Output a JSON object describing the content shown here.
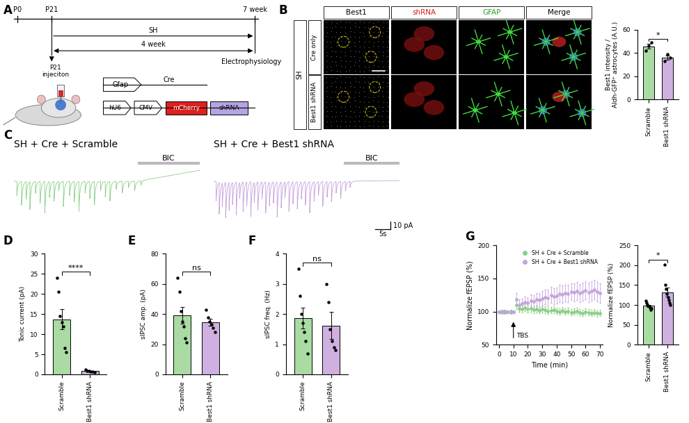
{
  "panel_labels": [
    "A",
    "B",
    "C",
    "D",
    "E",
    "F",
    "G"
  ],
  "schematic": {
    "timeline": [
      "P0",
      "P21",
      "7 week"
    ],
    "treatment": "SH",
    "duration": "4 week",
    "injection": "P21\ninjeciton",
    "endpoint": "Electrophysiology",
    "constructs": [
      [
        "Gfap",
        "Cre"
      ],
      [
        "hU6",
        "CMV",
        "mCherry",
        "shRNA"
      ]
    ]
  },
  "microscopy": {
    "group": "SH",
    "rows": [
      "Cre only",
      "Best1 shRNA"
    ],
    "columns": [
      "Best1",
      "shRNA",
      "GFAP",
      "Merge"
    ]
  },
  "traces": [
    {
      "title": "SH + Cre + Scramble",
      "color": "#8ccf86",
      "duration_s": 60,
      "drug": "BIC",
      "drug_start_s": 40,
      "baseline_shift_pA": 14,
      "events": {
        "t": [
          1,
          2.5,
          4,
          5.2,
          7,
          8.5,
          10,
          11.5,
          13,
          14.5,
          16,
          18,
          19.5,
          21,
          23,
          24.5,
          26,
          28,
          29.5,
          31,
          33,
          35,
          37,
          39,
          41
        ],
        "amp_pA": [
          18,
          30,
          22,
          35,
          15,
          28,
          40,
          20,
          25,
          12,
          32,
          18,
          26,
          38,
          15,
          22,
          30,
          12,
          20,
          25,
          10,
          15,
          8,
          12,
          6
        ]
      }
    },
    {
      "title": "SH + Cre + Best1 shRNA",
      "color": "#c5a3dc",
      "duration_s": 60,
      "drug": "BIC",
      "drug_start_s": 42,
      "baseline_shift_pA": 1,
      "events": {
        "t": [
          0.8,
          1.8,
          2.8,
          3.9,
          5,
          6.1,
          7.3,
          8.4,
          9.5,
          10.7,
          12,
          13.1,
          14.3,
          15.6,
          16.8,
          18,
          19.3,
          20.5,
          21.8,
          23,
          24.3,
          25.6,
          27,
          28.3,
          29.6,
          31,
          32.4,
          33.8,
          35.2,
          36.6,
          38,
          39.5,
          41,
          42.5,
          44
        ],
        "amp_pA": [
          25,
          40,
          30,
          45,
          35,
          28,
          42,
          20,
          38,
          30,
          44,
          25,
          36,
          22,
          40,
          30,
          27,
          45,
          33,
          20,
          38,
          28,
          35,
          22,
          30,
          40,
          25,
          18,
          32,
          20,
          26,
          15,
          22,
          12,
          8
        ]
      }
    }
  ],
  "scale_bars": [
    {
      "value": 10,
      "label": "10 pA"
    },
    {
      "value": 5,
      "label": "5s"
    }
  ],
  "chart_data": [
    {
      "type": "bar",
      "categories": [
        "Scramble",
        "Best1 shRNA"
      ],
      "values": [
        45.7,
        36
      ],
      "errors": [
        2.1,
        1.7
      ],
      "points": [
        [
          42,
          46,
          49
        ],
        [
          33,
          39,
          36
        ]
      ],
      "colors": [
        "#a9dba3",
        "#cfb0e0"
      ],
      "y_label": "Best1 intensity /\nAldh-GFP⁺ astrocytes (A.U.)",
      "ylim": [
        0,
        60
      ],
      "yticks": [
        0,
        20,
        40,
        60
      ],
      "significance": "*"
    },
    {
      "type": "bar",
      "categories": [
        "Scramble",
        "Best1 shRNA"
      ],
      "values": [
        13.7,
        0.8
      ],
      "errors": [
        2.5,
        0.1
      ],
      "points": [
        [
          24,
          20.5,
          14.5,
          13,
          12,
          6.5,
          5.5
        ],
        [
          1.2,
          0.9,
          0.8,
          0.7,
          0.6,
          0.5
        ]
      ],
      "colors": [
        "#a9dba3",
        "#cfb0e0"
      ],
      "y_label": "Tonic current (pA)",
      "ylim": [
        0,
        30
      ],
      "yticks": [
        0,
        5,
        10,
        15,
        20,
        25,
        30
      ],
      "significance": "****"
    },
    {
      "type": "bar",
      "categories": [
        "Scramble",
        "Best1 shRNA"
      ],
      "values": [
        39,
        34.7
      ],
      "errors": [
        5.5,
        2.3
      ],
      "points": [
        [
          64,
          55,
          42,
          35,
          32,
          24,
          21
        ],
        [
          43,
          38,
          35,
          33,
          31,
          28
        ]
      ],
      "colors": [
        "#a9dba3",
        "#cfb0e0"
      ],
      "y_label": "sIPSC amp. (pA)",
      "ylim": [
        0,
        80
      ],
      "yticks": [
        0,
        20,
        40,
        60,
        80
      ],
      "significance": "ns"
    },
    {
      "type": "bar",
      "categories": [
        "Scramble",
        "Best1 shRNA"
      ],
      "values": [
        1.86,
        1.62
      ],
      "errors": [
        0.35,
        0.45
      ],
      "points": [
        [
          3.5,
          2.6,
          2.0,
          1.7,
          1.4,
          1.1,
          0.7
        ],
        [
          3.0,
          2.4,
          1.5,
          1.1,
          0.9,
          0.8
        ]
      ],
      "colors": [
        "#a9dba3",
        "#cfb0e0"
      ],
      "y_label": "sIPSC freq. (Hz)",
      "ylim": [
        0,
        4
      ],
      "yticks": [
        0,
        1,
        2,
        3,
        4
      ],
      "significance": "ns"
    },
    {
      "type": "line",
      "x": [
        0,
        2,
        4,
        6,
        8,
        10,
        12,
        14,
        16,
        18,
        20,
        22,
        24,
        26,
        28,
        30,
        32,
        34,
        36,
        38,
        40,
        42,
        44,
        46,
        48,
        50,
        52,
        54,
        56,
        58,
        60,
        62,
        64,
        66,
        68,
        70
      ],
      "x_label": "Time (min)",
      "y_label": "Normalize fEPSP (%)",
      "xlim": [
        -2,
        72
      ],
      "xticks": [
        0,
        10,
        20,
        30,
        40,
        50,
        60,
        70
      ],
      "ylim": [
        50,
        200
      ],
      "yticks": [
        50,
        100,
        150,
        200
      ],
      "legend": "upper right",
      "annotations": [
        {
          "text": "TBS",
          "x": 10
        }
      ],
      "series": [
        {
          "name": "SH + Cre + Scramble",
          "color": "#8ccf86",
          "marker": "o",
          "values": [
            100,
            101,
            99,
            100,
            101,
            100,
            110,
            105,
            104,
            106,
            104,
            105,
            103,
            104,
            102,
            104,
            103,
            101,
            102,
            103,
            101,
            100,
            102,
            100,
            101,
            99,
            100,
            101,
            99,
            98,
            100,
            99,
            98,
            99,
            97,
            98
          ],
          "errors": [
            2,
            2,
            2,
            2,
            2,
            2,
            6,
            5,
            5,
            5,
            5,
            5,
            5,
            5,
            5,
            5,
            5,
            5,
            5,
            5,
            5,
            5,
            5,
            5,
            5,
            5,
            5,
            5,
            5,
            5,
            5,
            5,
            5,
            5,
            5,
            5
          ]
        },
        {
          "name": "SH + Cre + Best1 shRNA",
          "color": "#c5a3dc",
          "marker": "o",
          "values": [
            100,
            99,
            101,
            100,
            99,
            100,
            118,
            110,
            112,
            114,
            113,
            116,
            115,
            118,
            117,
            120,
            122,
            121,
            125,
            123,
            124,
            127,
            126,
            128,
            127,
            130,
            129,
            131,
            128,
            130,
            132,
            129,
            131,
            133,
            130,
            128
          ],
          "errors": [
            2,
            2,
            2,
            2,
            2,
            2,
            10,
            8,
            8,
            9,
            9,
            10,
            10,
            10,
            11,
            11,
            11,
            12,
            12,
            12,
            12,
            13,
            13,
            13,
            13,
            13,
            14,
            14,
            14,
            14,
            14,
            15,
            15,
            15,
            15,
            15
          ]
        }
      ]
    },
    {
      "type": "bar",
      "categories": [
        "Scramble",
        "Best1 shRNA"
      ],
      "values": [
        98,
        132
      ],
      "errors": [
        2.5,
        11
      ],
      "points": [
        [
          110,
          105,
          101,
          98,
          96,
          93,
          88,
          92
        ],
        [
          201,
          150,
          140,
          128,
          120,
          112,
          105,
          100
        ]
      ],
      "colors": [
        "#a9dba3",
        "#cfb0e0"
      ],
      "y_label": "Normalize fEPSP (%)",
      "ylim": [
        0,
        250
      ],
      "yticks": [
        0,
        50,
        100,
        150,
        200,
        250
      ],
      "significance": "*"
    }
  ]
}
